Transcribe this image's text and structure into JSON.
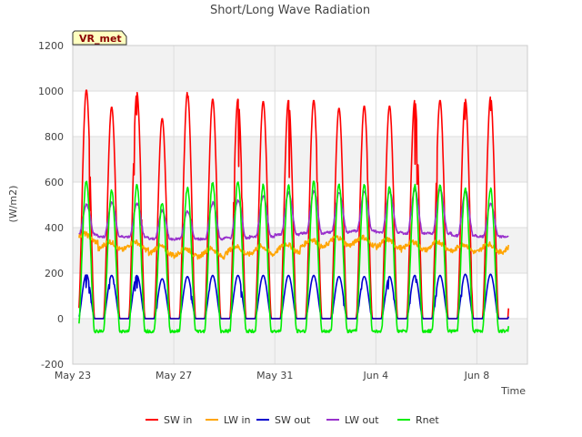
{
  "chart_data": {
    "type": "line",
    "title": "Short/Long Wave Radiation",
    "xlabel": "Time",
    "ylabel": "(W/m2)",
    "badge": "VR_met",
    "ylim": [
      -200,
      1200
    ],
    "yticks": [
      -200,
      0,
      200,
      400,
      600,
      800,
      1000,
      1200
    ],
    "xlim": [
      "2016-05-23",
      "2016-06-10"
    ],
    "xticks": [
      {
        "date": "2016-05-23",
        "label": "May 23"
      },
      {
        "date": "2016-05-27",
        "label": "May 27"
      },
      {
        "date": "2016-05-31",
        "label": "May 31"
      },
      {
        "date": "2016-06-04",
        "label": "Jun 4"
      },
      {
        "date": "2016-06-08",
        "label": "Jun 8"
      }
    ],
    "grid": true,
    "legend_position": "bottom",
    "start": "2016-05-23",
    "days": 17,
    "series": [
      {
        "name": "SW in",
        "color": "#ff0000",
        "daily_peaks": [
          1005,
          930,
          995,
          880,
          995,
          965,
          965,
          955,
          960,
          960,
          925,
          935,
          935,
          960,
          960,
          965,
          975
        ]
      },
      {
        "name": "LW in",
        "color": "#ffa500",
        "daily_levels": [
          355,
          320,
          320,
          300,
          290,
          290,
          300,
          300,
          310,
          330,
          340,
          340,
          330,
          320,
          320,
          310,
          310
        ]
      },
      {
        "name": "SW out",
        "color": "#0000cd",
        "daily_peaks": [
          195,
          190,
          190,
          175,
          185,
          190,
          190,
          190,
          190,
          190,
          185,
          185,
          185,
          190,
          190,
          195,
          195
        ]
      },
      {
        "name": "LW out",
        "color": "#9932cc",
        "daily_base": [
          370,
          360,
          360,
          350,
          350,
          350,
          355,
          360,
          370,
          375,
          380,
          385,
          380,
          375,
          375,
          365,
          360
        ],
        "daily_peaks": [
          500,
          510,
          505,
          475,
          470,
          510,
          520,
          540,
          555,
          560,
          555,
          560,
          560,
          565,
          565,
          560,
          505
        ]
      },
      {
        "name": "Rnet",
        "color": "#00ee00",
        "daily_peaks": [
          605,
          560,
          585,
          510,
          575,
          600,
          605,
          585,
          585,
          600,
          590,
          590,
          580,
          585,
          590,
          570,
          570
        ],
        "night_level": -55
      }
    ]
  }
}
